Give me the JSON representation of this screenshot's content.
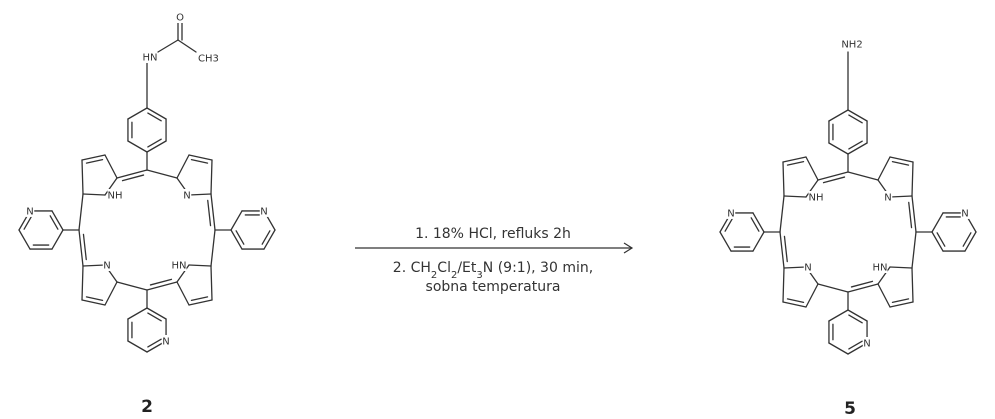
{
  "atoms": {
    "nh": "NH",
    "hn": "HN",
    "n": "N",
    "o": "O",
    "ch3": "CH3",
    "nh2": "NH2",
    "hn_amide": "HN"
  },
  "reaction": {
    "step1": "1. 18% HCl, refluks 2h",
    "step2_a": "2. CH",
    "step2_sub1": "2",
    "step2_b": "Cl",
    "step2_sub2": "2",
    "step2_c": "/Et",
    "step2_sub3": "3",
    "step2_d": "N (9:1), 30 min,",
    "step3": "sobna temperatura"
  },
  "compounds": {
    "left_label": "2",
    "right_label": "5"
  }
}
